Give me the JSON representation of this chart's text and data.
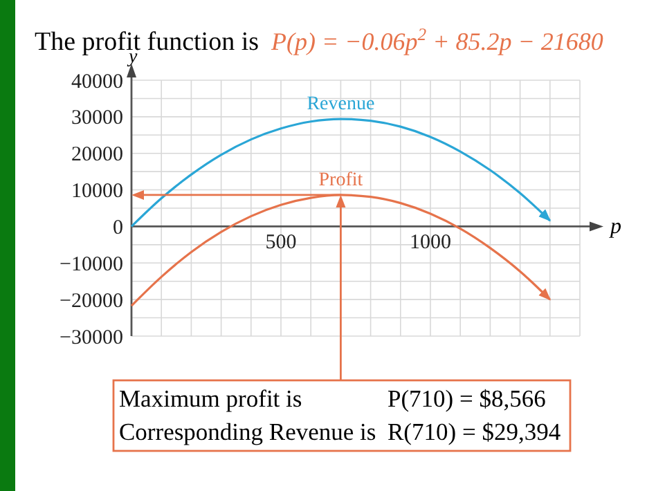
{
  "chart_data": {
    "type": "line",
    "title": "The profit function is",
    "subtitle": "P(p) = −0.06p$^{2}$ + 85.2p − 21680",
    "xlabel": "p",
    "ylabel": "y",
    "x": [
      0,
      100,
      200,
      300,
      400,
      500,
      600,
      700,
      800,
      900,
      1000,
      1100,
      1200,
      1300,
      1400
    ],
    "series": [
      {
        "name": "Revenue",
        "color": "#2aa6d6",
        "values": [
          0,
          7700,
          14200,
          19600,
          23800,
          26800,
          28700,
          29400,
          28900,
          27300,
          24500,
          20500,
          15400,
          9100,
          1600
        ]
      },
      {
        "name": "Profit",
        "color": "#e6734b",
        "values": [
          -21700,
          -13800,
          -7000,
          -1500,
          2800,
          5900,
          7800,
          8600,
          8100,
          6400,
          3500,
          -600,
          -5900,
          -12300,
          -20000
        ]
      }
    ],
    "xlim": [
      0,
      1500
    ],
    "xticks": [
      {
        "value": 100,
        "label": null
      },
      {
        "value": 200,
        "label": null
      },
      {
        "value": 300,
        "label": null
      },
      {
        "value": 400,
        "label": null
      },
      500,
      {
        "value": 600,
        "label": null
      },
      {
        "value": 700,
        "label": null
      },
      {
        "value": 800,
        "label": null
      },
      {
        "value": 900,
        "label": null
      },
      1000,
      {
        "value": 1100,
        "label": null
      },
      {
        "value": 1200,
        "label": null
      },
      {
        "value": 1300,
        "label": null
      },
      {
        "value": 1400,
        "label": null
      },
      {
        "value": 1500,
        "label": null
      }
    ],
    "ylim": [
      -30000,
      40000
    ],
    "yticks": [
      {
        "value": -30000,
        "label": "−30000"
      },
      {
        "value": -25000,
        "label": null
      },
      {
        "value": -20000,
        "label": "−20000"
      },
      {
        "value": -15000,
        "label": null
      },
      {
        "value": -10000,
        "label": "−10000"
      },
      {
        "value": -5000,
        "label": null
      },
      0,
      {
        "value": 5000,
        "label": null
      },
      10000,
      {
        "value": 15000,
        "label": null
      },
      20000,
      {
        "value": 25000,
        "label": null
      },
      30000,
      {
        "value": 35000,
        "label": null
      },
      40000
    ],
    "grid": true,
    "marker": "none",
    "line_style": "solid",
    "annotations": [
      "Maximum profit is",
      "P(710) = $8,566",
      "Corresponding Revenue is",
      "R(710) = $29,394"
    ]
  }
}
